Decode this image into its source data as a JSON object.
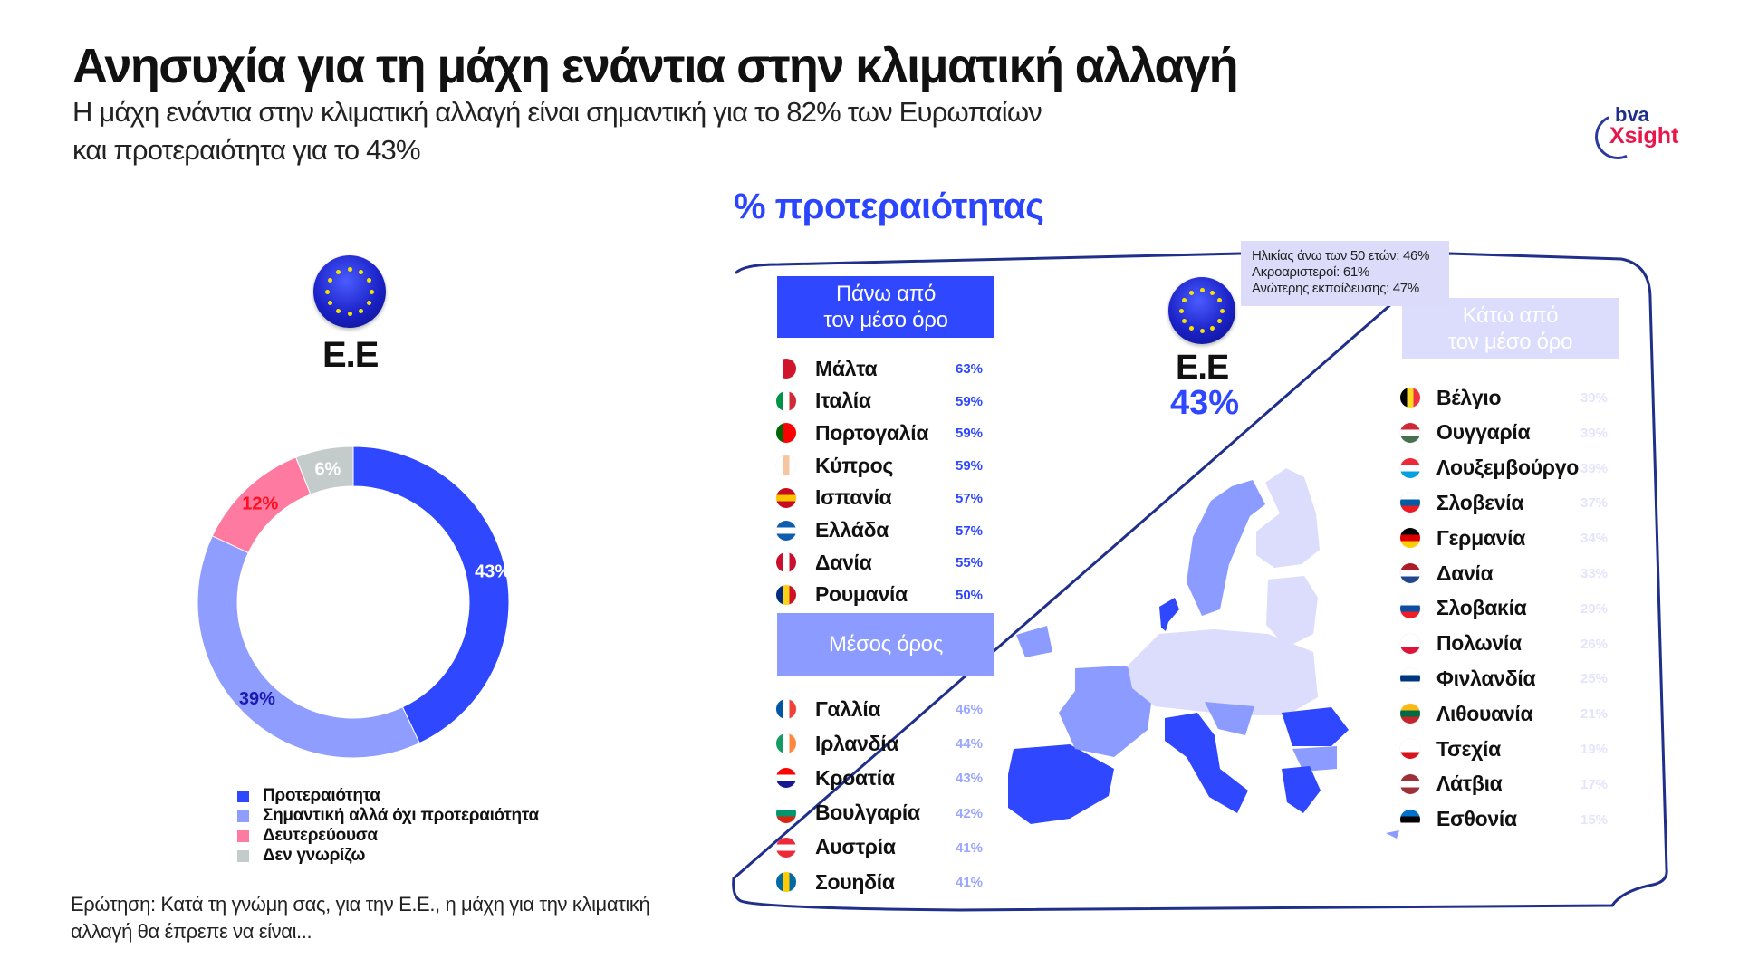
{
  "header": {
    "title": "Ανησυχία για τη μάχη ενάντια στην κλιματική αλλαγή",
    "subtitle_line1": "Η μάχη ενάντια στην κλιματική αλλαγή είναι σημαντική για το 82% των Ευρωπαίων",
    "subtitle_line2": "και προτεραιότητα για το 43%"
  },
  "logo": {
    "top": "bva",
    "bottom": "Xsight"
  },
  "left_panel": {
    "eu_label": "Ε.Ε",
    "question_line1": "Ερώτηση: Κατά τη γνώμη σας, για την Ε.Ε., η μάχη για την κλιματική",
    "question_line2": "αλλαγή θα έπρεπε να είναι..."
  },
  "chart_data": {
    "type": "pie",
    "donut": true,
    "categories": [
      "Προτεραιότητα",
      "Σημαντική αλλά όχι προτεραιότητα",
      "Δευτερεύουσα",
      "Δεν γνωρίζω"
    ],
    "values": [
      43,
      39,
      12,
      6
    ],
    "labels": [
      "43%",
      "39%",
      "12%",
      "6%"
    ],
    "colors": [
      "#2e47ff",
      "#8f9dff",
      "#ff7aa0",
      "#c4cbcb"
    ],
    "label_colors": [
      "#ffffff",
      "#1a1ab0",
      "#ff1020",
      "#ffffff"
    ],
    "legend_placement": "bottom-left"
  },
  "right_panel": {
    "title": "% προτεραιότητας",
    "eu_label": "Ε.Ε",
    "eu_value": "43%",
    "tooltip": [
      "Ηλικίας άνω των 50 ετών: 46%",
      "Ακροαριστεροί: 61%",
      "Ανώτερης εκπαίδευσης: 47%"
    ],
    "above": {
      "label_line1": "Πάνω από",
      "label_line2": "τον μέσο όρο",
      "color": "#2e47ff",
      "items": [
        {
          "name": "Μάλτα",
          "value": "63%",
          "flag": [
            "#ffffff",
            "#cf142b"
          ]
        },
        {
          "name": "Ιταλία",
          "value": "59%",
          "flag": [
            "#009246",
            "#ffffff",
            "#ce2b37"
          ]
        },
        {
          "name": "Πορτογαλία",
          "value": "59%",
          "flag": [
            "#006600",
            "#ff0000",
            "#ff0000"
          ]
        },
        {
          "name": "Κύπρος",
          "value": "59%",
          "flag": [
            "#ffffff",
            "#f5c6a0",
            "#ffffff"
          ]
        },
        {
          "name": "Ισπανία",
          "value": "57%",
          "flag": [
            "#c60b1e",
            "#ffc400",
            "#c60b1e"
          ],
          "horizontal": true
        },
        {
          "name": "Ελλάδα",
          "value": "57%",
          "flag": [
            "#0d5eaf",
            "#ffffff",
            "#0d5eaf"
          ],
          "horizontal": true
        },
        {
          "name": "Δανία",
          "value": "55%",
          "flag": [
            "#c8102e",
            "#ffffff",
            "#c8102e"
          ]
        },
        {
          "name": "Ρουμανία",
          "value": "50%",
          "flag": [
            "#002b7f",
            "#fcd116",
            "#ce1126"
          ]
        }
      ]
    },
    "average": {
      "label": "Μέσος όρος",
      "color": "#8c9bff",
      "items": [
        {
          "name": "Γαλλία",
          "value": "46%",
          "flag": [
            "#0055a4",
            "#ffffff",
            "#ef4135"
          ]
        },
        {
          "name": "Ιρλανδία",
          "value": "44%",
          "flag": [
            "#169b62",
            "#ffffff",
            "#ff883e"
          ]
        },
        {
          "name": "Κροατία",
          "value": "43%",
          "flag": [
            "#ff0000",
            "#ffffff",
            "#171796"
          ],
          "horizontal": true
        },
        {
          "name": "Βουλγαρία",
          "value": "42%",
          "flag": [
            "#ffffff",
            "#00966e",
            "#d62612"
          ],
          "horizontal": true
        },
        {
          "name": "Αυστρία",
          "value": "41%",
          "flag": [
            "#ed2939",
            "#ffffff",
            "#ed2939"
          ],
          "horizontal": true
        },
        {
          "name": "Σουηδία",
          "value": "41%",
          "flag": [
            "#006aa7",
            "#fecc00",
            "#006aa7"
          ]
        }
      ]
    },
    "below": {
      "label_line1": "Κάτω από",
      "label_line2": "τον μέσο όρο",
      "color": "#dcdcfc",
      "items": [
        {
          "name": "Βέλγιο",
          "value": "39%",
          "flag": [
            "#000000",
            "#fdda24",
            "#ef3340"
          ]
        },
        {
          "name": "Ουγγαρία",
          "value": "39%",
          "flag": [
            "#ce2939",
            "#ffffff",
            "#477050"
          ],
          "horizontal": true
        },
        {
          "name": "Λουξεμβούργο",
          "value": "39%",
          "flag": [
            "#ed2939",
            "#ffffff",
            "#00a1de"
          ],
          "horizontal": true
        },
        {
          "name": "Σλοβενία",
          "value": "37%",
          "flag": [
            "#ffffff",
            "#005da4",
            "#ed1c24"
          ],
          "horizontal": true
        },
        {
          "name": "Γερμανία",
          "value": "34%",
          "flag": [
            "#000000",
            "#dd0000",
            "#ffce00"
          ],
          "horizontal": true
        },
        {
          "name": "Δανία",
          "value": "33%",
          "flag": [
            "#ae1c28",
            "#ffffff",
            "#21468b"
          ],
          "horizontal": true
        },
        {
          "name": "Σλοβακία",
          "value": "29%",
          "flag": [
            "#ffffff",
            "#0b4ea2",
            "#ee1c25"
          ],
          "horizontal": true
        },
        {
          "name": "Πολωνία",
          "value": "26%",
          "flag": [
            "#ffffff",
            "#ffffff",
            "#dc143c"
          ],
          "horizontal": true
        },
        {
          "name": "Φινλανδία",
          "value": "25%",
          "flag": [
            "#ffffff",
            "#003580",
            "#ffffff"
          ],
          "horizontal": true
        },
        {
          "name": "Λιθουανία",
          "value": "21%",
          "flag": [
            "#fdb913",
            "#006a44",
            "#c1272d"
          ],
          "horizontal": true
        },
        {
          "name": "Τσεχία",
          "value": "19%",
          "flag": [
            "#ffffff",
            "#ffffff",
            "#d7141a"
          ],
          "horizontal": true
        },
        {
          "name": "Λάτβια",
          "value": "17%",
          "flag": [
            "#9e3039",
            "#ffffff",
            "#9e3039"
          ],
          "horizontal": true
        },
        {
          "name": "Εσθονία",
          "value": "15%",
          "flag": [
            "#0072ce",
            "#000000",
            "#ffffff"
          ],
          "horizontal": true
        }
      ]
    }
  }
}
